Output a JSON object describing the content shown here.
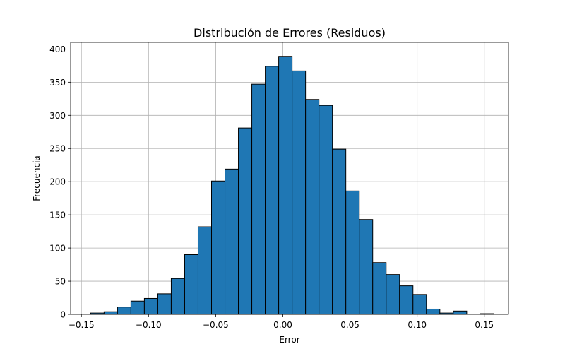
{
  "chart_data": {
    "type": "bar",
    "title": "Distribución de Errores (Residuos)",
    "xlabel": "Error",
    "ylabel": "Frecuencia",
    "xlim": [
      -0.158,
      0.168
    ],
    "ylim": [
      0,
      410
    ],
    "xticks": [
      {
        "value": -0.15,
        "label": "−0.15"
      },
      {
        "value": -0.1,
        "label": "−0.10"
      },
      {
        "value": -0.05,
        "label": "−0.05"
      },
      {
        "value": 0.0,
        "label": "0.00"
      },
      {
        "value": 0.05,
        "label": "0.05"
      },
      {
        "value": 0.1,
        "label": "0.10"
      },
      {
        "value": 0.15,
        "label": "0.15"
      }
    ],
    "yticks": [
      {
        "value": 0,
        "label": "0"
      },
      {
        "value": 50,
        "label": "50"
      },
      {
        "value": 100,
        "label": "100"
      },
      {
        "value": 150,
        "label": "150"
      },
      {
        "value": 200,
        "label": "200"
      },
      {
        "value": 250,
        "label": "250"
      },
      {
        "value": 300,
        "label": "300"
      },
      {
        "value": 350,
        "label": "350"
      },
      {
        "value": 400,
        "label": "400"
      }
    ],
    "bin_edges": [
      -0.1431,
      -0.1331,
      -0.1231,
      -0.1131,
      -0.1031,
      -0.0931,
      -0.0831,
      -0.0731,
      -0.0631,
      -0.0531,
      -0.0431,
      -0.0331,
      -0.0231,
      -0.0131,
      -0.0031,
      0.0069,
      0.0169,
      0.0269,
      0.0369,
      0.0469,
      0.0569,
      0.0669,
      0.0769,
      0.0869,
      0.0969,
      0.1069,
      0.1169,
      0.1269,
      0.1369,
      0.1469,
      0.1569
    ],
    "values": [
      2,
      4,
      11,
      20,
      24,
      31,
      54,
      90,
      132,
      201,
      219,
      281,
      347,
      374,
      389,
      367,
      324,
      315,
      249,
      186,
      143,
      78,
      60,
      43,
      30,
      8,
      2,
      5,
      0,
      1
    ],
    "grid": true,
    "colors": {
      "bar_fill": "#1f77b4",
      "bar_edge": "#000000",
      "grid": "#b0b0b0"
    }
  }
}
